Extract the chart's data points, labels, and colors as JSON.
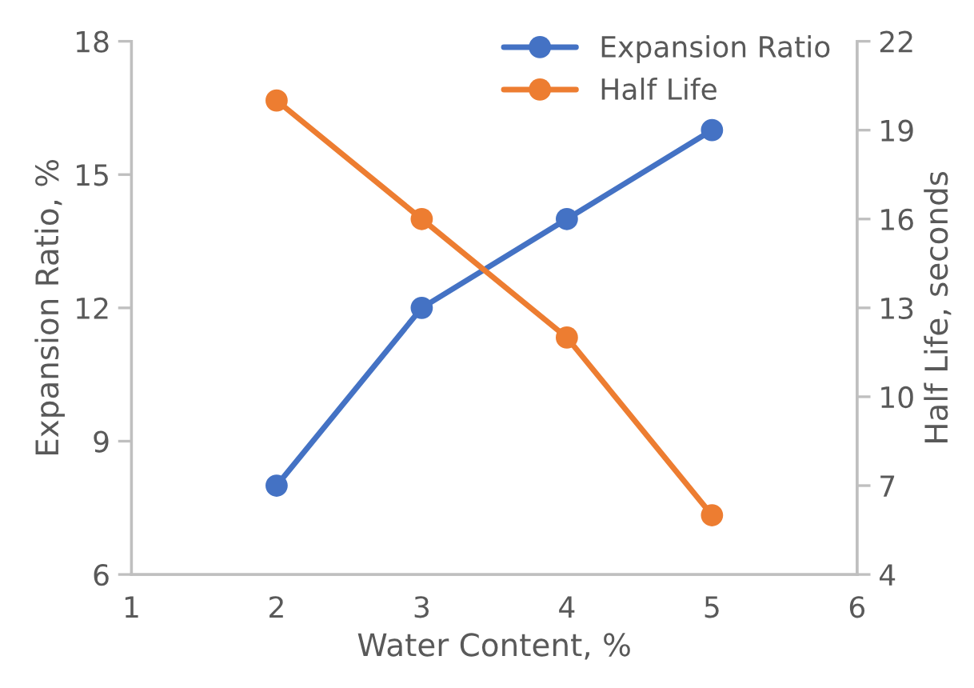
{
  "chart_data": {
    "type": "line",
    "xlabel": "Water Content, %",
    "ylabel": "Expansion Ratio, %",
    "y2label": "Half Life, seconds",
    "x": [
      2,
      3,
      4,
      5
    ],
    "series": [
      {
        "name": "Expansion Ratio",
        "color": "#4472c4",
        "values": [
          8,
          12,
          14,
          16
        ]
      },
      {
        "name": "Half Life",
        "color": "#ed7d31",
        "values": [
          20,
          16,
          12,
          6
        ],
        "axis": "y2"
      }
    ],
    "xlim": [
      1,
      6
    ],
    "xticks": [
      1,
      2,
      3,
      4,
      5,
      6
    ],
    "ylim": [
      6,
      18
    ],
    "yticks": [
      6,
      9,
      12,
      15,
      18
    ],
    "y2lim": [
      4,
      22
    ],
    "y2ticks": [
      4,
      7,
      10,
      13,
      16,
      19,
      22
    ],
    "marker": "circle",
    "line_style": "solid",
    "grid": false,
    "legend": "top right"
  }
}
